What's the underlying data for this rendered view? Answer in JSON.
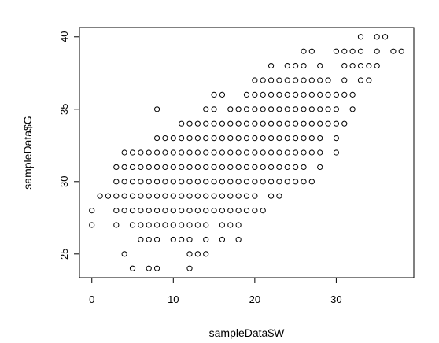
{
  "chart_data": {
    "type": "scatter",
    "title": "",
    "xlabel": "sampleData$W",
    "ylabel": "sampleData$G",
    "xlim": [
      -1.52,
      39.52
    ],
    "ylim": [
      23.36,
      40.64
    ],
    "x_ticks": [
      0,
      10,
      20,
      30
    ],
    "x_tick_labels": [
      "0",
      "10",
      "20",
      "30"
    ],
    "y_ticks": [
      25,
      30,
      35,
      40
    ],
    "y_tick_labels": [
      "25",
      "30",
      "35",
      "40"
    ],
    "grid": false,
    "legend": "none",
    "marker": "open-circle",
    "rows": [
      {
        "y": 40,
        "x": [
          33,
          35,
          36
        ]
      },
      {
        "y": 39,
        "x": [
          26,
          27,
          30,
          31,
          32,
          33,
          35,
          37,
          38
        ]
      },
      {
        "y": 38,
        "x": [
          22,
          24,
          25,
          26,
          28,
          31,
          32,
          33,
          34,
          35
        ]
      },
      {
        "y": 37,
        "x": [
          20,
          21,
          22,
          23,
          24,
          25,
          26,
          27,
          28,
          29,
          31,
          33,
          34
        ]
      },
      {
        "y": 36,
        "x": [
          15,
          16,
          19,
          20,
          21,
          22,
          23,
          24,
          25,
          26,
          27,
          28,
          29,
          30,
          31,
          32
        ]
      },
      {
        "y": 35,
        "x": [
          8,
          14,
          15,
          17,
          18,
          19,
          20,
          21,
          22,
          23,
          24,
          25,
          26,
          27,
          28,
          29,
          30,
          32
        ]
      },
      {
        "y": 34,
        "x": [
          11,
          12,
          13,
          14,
          15,
          16,
          17,
          18,
          19,
          20,
          21,
          22,
          23,
          24,
          25,
          26,
          27,
          28,
          29,
          30,
          31
        ]
      },
      {
        "y": 33,
        "x": [
          8,
          9,
          10,
          11,
          12,
          13,
          14,
          15,
          16,
          17,
          18,
          19,
          20,
          21,
          22,
          23,
          24,
          25,
          26,
          27,
          28,
          30
        ]
      },
      {
        "y": 32,
        "x": [
          4,
          5,
          6,
          7,
          8,
          9,
          10,
          11,
          12,
          13,
          14,
          15,
          16,
          17,
          18,
          19,
          20,
          21,
          22,
          23,
          24,
          25,
          26,
          27,
          28,
          30
        ]
      },
      {
        "y": 31,
        "x": [
          3,
          4,
          5,
          6,
          7,
          8,
          9,
          10,
          11,
          12,
          13,
          14,
          15,
          16,
          17,
          18,
          19,
          20,
          21,
          22,
          23,
          24,
          25,
          26,
          28
        ]
      },
      {
        "y": 30,
        "x": [
          3,
          4,
          5,
          6,
          7,
          8,
          9,
          10,
          11,
          12,
          13,
          14,
          15,
          16,
          17,
          18,
          19,
          20,
          21,
          22,
          23,
          24,
          25,
          26,
          27
        ]
      },
      {
        "y": 29,
        "x": [
          1,
          2,
          3,
          4,
          5,
          6,
          7,
          8,
          9,
          10,
          11,
          12,
          13,
          14,
          15,
          16,
          17,
          18,
          19,
          20,
          22,
          23
        ]
      },
      {
        "y": 28,
        "x": [
          0,
          3,
          4,
          5,
          6,
          7,
          8,
          9,
          10,
          11,
          12,
          13,
          14,
          15,
          16,
          17,
          18,
          19,
          20,
          21
        ]
      },
      {
        "y": 27,
        "x": [
          0,
          3,
          5,
          6,
          7,
          8,
          9,
          10,
          11,
          12,
          13,
          14,
          16,
          17,
          18
        ]
      },
      {
        "y": 26,
        "x": [
          6,
          7,
          8,
          10,
          11,
          12,
          14,
          16,
          18
        ]
      },
      {
        "y": 25,
        "x": [
          4,
          12,
          13,
          14
        ]
      },
      {
        "y": 24,
        "x": [
          5,
          7,
          8,
          12
        ]
      }
    ]
  }
}
